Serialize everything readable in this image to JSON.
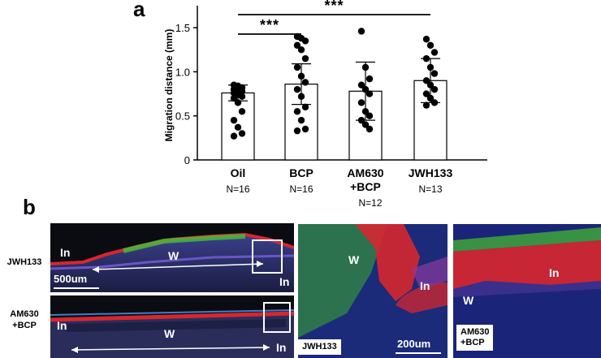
{
  "panel_a_label": "a",
  "panel_b_label": "b",
  "chart_data": {
    "type": "bar",
    "ylabel": "Migration distance (mm)",
    "xlabel": "",
    "ylim": [
      0,
      1.75
    ],
    "yticks": [
      "0",
      "0.5",
      "1.0",
      "1.5"
    ],
    "ytick_values": [
      0,
      0.5,
      1.0,
      1.5
    ],
    "categories": [
      "Oil",
      "BCP",
      "AM630\n+BCP",
      "JWH133"
    ],
    "n_labels": [
      "N=16",
      "N=16",
      "N=12",
      "N=13"
    ],
    "means": [
      0.76,
      0.86,
      0.78,
      0.9
    ],
    "sd": [
      0.09,
      0.23,
      0.33,
      0.25
    ],
    "points": [
      [
        0.85,
        0.84,
        0.82,
        0.8,
        0.79,
        0.78,
        0.76,
        0.74,
        0.72,
        0.7,
        0.65,
        0.55,
        0.45,
        0.37,
        0.3,
        0.27
      ],
      [
        1.4,
        1.38,
        1.35,
        1.3,
        1.25,
        1.15,
        1.05,
        0.95,
        0.88,
        0.8,
        0.72,
        0.6,
        0.55,
        0.45,
        0.35,
        0.33
      ],
      [
        1.46,
        1.05,
        0.92,
        0.85,
        0.8,
        0.75,
        0.65,
        0.55,
        0.5,
        0.45,
        0.4,
        0.35
      ],
      [
        1.37,
        1.3,
        1.22,
        1.15,
        1.05,
        0.98,
        0.9,
        0.85,
        0.8,
        0.75,
        0.7,
        0.65,
        0.62
      ]
    ],
    "significance": [
      {
        "from": 0,
        "to": 1,
        "label": "***"
      },
      {
        "from": 0,
        "to": 3,
        "label": "***"
      }
    ],
    "grid": false,
    "colors": {
      "bar_fill": "#ffffff",
      "bar_stroke": "#000000",
      "point": "#000000"
    }
  },
  "panel_b": {
    "row1_label": "JWH133",
    "row2_label": "AM630\n+BCP",
    "in_label": "In",
    "w_label": "W",
    "scale_500": "500um",
    "scale_200": "200um",
    "inset1_label": "JWH133",
    "inset2_label": "AM630\n+BCP",
    "colors": {
      "dapi": "#2a3bd6",
      "green": "#3fbf3a",
      "red": "#e0202a",
      "background": "#0b0b12"
    }
  }
}
